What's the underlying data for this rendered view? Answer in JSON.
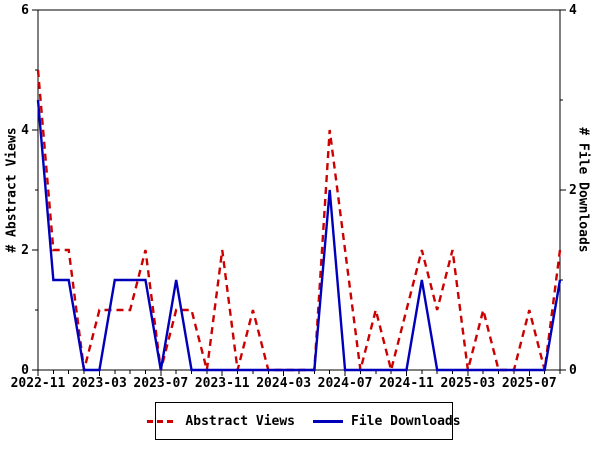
{
  "chart_data": {
    "type": "line",
    "x": [
      "2022-11",
      "2022-12",
      "2023-01",
      "2023-02",
      "2023-03",
      "2023-04",
      "2023-05",
      "2023-06",
      "2023-07",
      "2023-08",
      "2023-09",
      "2023-10",
      "2023-11",
      "2023-12",
      "2024-01",
      "2024-02",
      "2024-03",
      "2024-04",
      "2024-05",
      "2024-06",
      "2024-07",
      "2024-08",
      "2024-09",
      "2024-10",
      "2024-11",
      "2024-12",
      "2025-01",
      "2025-02",
      "2025-03",
      "2025-04",
      "2025-05",
      "2025-06",
      "2025-07",
      "2025-08",
      "2025-09"
    ],
    "x_major_tick_labels": [
      "2022-11",
      "2023-03",
      "2023-07",
      "2023-11",
      "2024-03",
      "2024-07",
      "2024-11",
      "2025-03",
      "2025-07"
    ],
    "x_label_every_n_months": 4,
    "series": [
      {
        "name": "Abstract Views",
        "axis": "left",
        "style": "dashed",
        "color": "#cc0000",
        "values": [
          5,
          2,
          2,
          0,
          1,
          1,
          1,
          2,
          0,
          1,
          1,
          0,
          2,
          0,
          1,
          0,
          0,
          0,
          0,
          4,
          2,
          0,
          1,
          0,
          1,
          2,
          1,
          2,
          0,
          1,
          0,
          0,
          1,
          0,
          2
        ]
      },
      {
        "name": "File Downloads",
        "axis": "right",
        "style": "solid",
        "color": "#0000bb",
        "values": [
          3,
          1,
          1,
          0,
          0,
          1,
          1,
          1,
          0,
          1,
          0,
          0,
          0,
          0,
          0,
          0,
          0,
          0,
          0,
          2,
          0,
          0,
          0,
          0,
          0,
          1,
          0,
          0,
          0,
          0,
          0,
          0,
          0,
          0,
          1
        ]
      }
    ],
    "left_axis": {
      "label": "# Abstract Views",
      "min": 0,
      "max": 6,
      "labeled_ticks": [
        0,
        2,
        4,
        6
      ],
      "minor_tick_step": 1
    },
    "right_axis": {
      "label": "# File Downloads",
      "min": 0,
      "max": 4,
      "labeled_ticks": [
        0,
        2,
        4
      ],
      "minor_tick_step": 1
    },
    "legend": {
      "position": "bottom",
      "entries": [
        "Abstract Views",
        "File Downloads"
      ]
    },
    "grid": false
  },
  "colors": {
    "background": "#ffffff",
    "axis": "#000000",
    "text": "#000000",
    "abstract_views": "#cc0000",
    "file_downloads": "#0000bb"
  }
}
